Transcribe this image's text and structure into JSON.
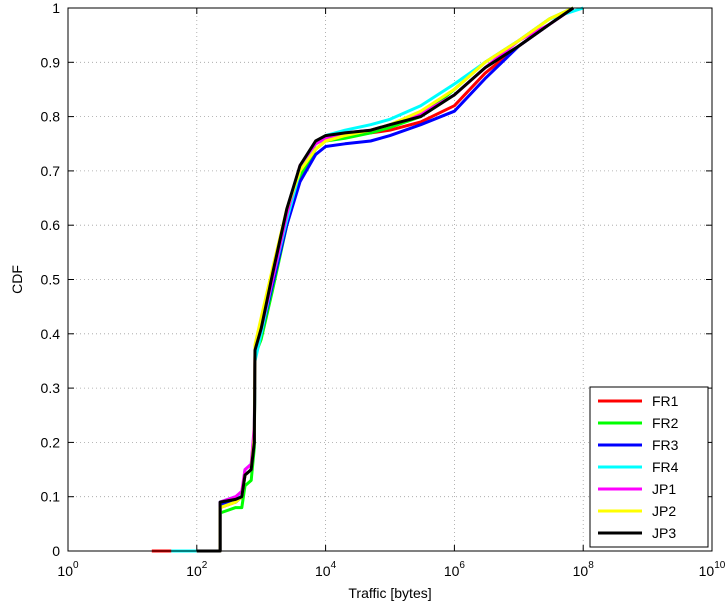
{
  "chart_data": {
    "type": "line",
    "title": "",
    "xlabel": "Traffic [bytes]",
    "ylabel": "CDF",
    "xscale": "log",
    "xlim": [
      1,
      10000000000
    ],
    "ylim": [
      0,
      1
    ],
    "grid": true,
    "legend_position": "bottom-right",
    "x_ticks": [
      {
        "base": "10",
        "exp": "0"
      },
      {
        "base": "10",
        "exp": "2"
      },
      {
        "base": "10",
        "exp": "4"
      },
      {
        "base": "10",
        "exp": "6"
      },
      {
        "base": "10",
        "exp": "8"
      },
      {
        "base": "10",
        "exp": "10"
      }
    ],
    "y_ticks": [
      "0",
      "0.1",
      "0.2",
      "0.3",
      "0.4",
      "0.5",
      "0.6",
      "0.7",
      "0.8",
      "0.9",
      "1"
    ],
    "series": [
      {
        "name": "FR1",
        "color": "#ff0000",
        "points": [
          [
            20,
            0
          ],
          [
            100,
            0
          ],
          [
            230,
            0
          ],
          [
            230,
            0.08
          ],
          [
            400,
            0.09
          ],
          [
            500,
            0.1
          ],
          [
            560,
            0.14
          ],
          [
            700,
            0.15
          ],
          [
            780,
            0.2
          ],
          [
            800,
            0.36
          ],
          [
            1000,
            0.4
          ],
          [
            1500,
            0.5
          ],
          [
            2500,
            0.62
          ],
          [
            4000,
            0.7
          ],
          [
            7000,
            0.75
          ],
          [
            10000,
            0.76
          ],
          [
            20000,
            0.765
          ],
          [
            50000,
            0.77
          ],
          [
            100000,
            0.775
          ],
          [
            300000,
            0.79
          ],
          [
            1000000,
            0.82
          ],
          [
            3000000,
            0.88
          ],
          [
            10000000,
            0.93
          ],
          [
            30000000,
            0.97
          ],
          [
            70000000,
            1
          ]
        ]
      },
      {
        "name": "FR2",
        "color": "#00ff00",
        "points": [
          [
            100,
            0
          ],
          [
            230,
            0
          ],
          [
            230,
            0.07
          ],
          [
            400,
            0.08
          ],
          [
            500,
            0.08
          ],
          [
            560,
            0.12
          ],
          [
            700,
            0.13
          ],
          [
            780,
            0.19
          ],
          [
            800,
            0.36
          ],
          [
            1000,
            0.39
          ],
          [
            1500,
            0.48
          ],
          [
            2500,
            0.6
          ],
          [
            4000,
            0.69
          ],
          [
            7000,
            0.74
          ],
          [
            10000,
            0.755
          ],
          [
            20000,
            0.76
          ],
          [
            50000,
            0.77
          ],
          [
            100000,
            0.78
          ],
          [
            300000,
            0.8
          ],
          [
            1000000,
            0.85
          ],
          [
            3000000,
            0.9
          ],
          [
            10000000,
            0.94
          ],
          [
            30000000,
            0.98
          ],
          [
            70000000,
            1
          ]
        ]
      },
      {
        "name": "FR3",
        "color": "#0000ff",
        "points": [
          [
            100,
            0
          ],
          [
            230,
            0
          ],
          [
            230,
            0.085
          ],
          [
            400,
            0.09
          ],
          [
            500,
            0.1
          ],
          [
            560,
            0.14
          ],
          [
            700,
            0.15
          ],
          [
            780,
            0.21
          ],
          [
            800,
            0.36
          ],
          [
            1000,
            0.4
          ],
          [
            1500,
            0.49
          ],
          [
            2500,
            0.6
          ],
          [
            4000,
            0.68
          ],
          [
            7000,
            0.73
          ],
          [
            10000,
            0.745
          ],
          [
            20000,
            0.75
          ],
          [
            50000,
            0.755
          ],
          [
            100000,
            0.765
          ],
          [
            300000,
            0.785
          ],
          [
            1000000,
            0.81
          ],
          [
            3000000,
            0.87
          ],
          [
            10000000,
            0.93
          ],
          [
            30000000,
            0.97
          ],
          [
            70000000,
            1
          ]
        ]
      },
      {
        "name": "FR4",
        "color": "#00ffff",
        "points": [
          [
            40,
            0
          ],
          [
            230,
            0
          ],
          [
            230,
            0.09
          ],
          [
            400,
            0.1
          ],
          [
            500,
            0.1
          ],
          [
            560,
            0.15
          ],
          [
            700,
            0.16
          ],
          [
            780,
            0.22
          ],
          [
            800,
            0.35
          ],
          [
            1000,
            0.4
          ],
          [
            1500,
            0.5
          ],
          [
            2500,
            0.61
          ],
          [
            4000,
            0.7
          ],
          [
            7000,
            0.75
          ],
          [
            10000,
            0.765
          ],
          [
            20000,
            0.775
          ],
          [
            50000,
            0.785
          ],
          [
            100000,
            0.795
          ],
          [
            300000,
            0.82
          ],
          [
            1000000,
            0.86
          ],
          [
            3000000,
            0.9
          ],
          [
            10000000,
            0.94
          ],
          [
            30000000,
            0.98
          ],
          [
            100000000,
            1
          ]
        ]
      },
      {
        "name": "JP1",
        "color": "#ff00ff",
        "points": [
          [
            100,
            0
          ],
          [
            230,
            0
          ],
          [
            230,
            0.09
          ],
          [
            400,
            0.1
          ],
          [
            500,
            0.11
          ],
          [
            560,
            0.15
          ],
          [
            700,
            0.16
          ],
          [
            780,
            0.23
          ],
          [
            800,
            0.37
          ],
          [
            1000,
            0.41
          ],
          [
            1500,
            0.5
          ],
          [
            2500,
            0.62
          ],
          [
            4000,
            0.71
          ],
          [
            7000,
            0.75
          ],
          [
            10000,
            0.76
          ],
          [
            20000,
            0.77
          ],
          [
            50000,
            0.775
          ],
          [
            100000,
            0.785
          ],
          [
            300000,
            0.805
          ],
          [
            1000000,
            0.84
          ],
          [
            3000000,
            0.89
          ],
          [
            10000000,
            0.94
          ],
          [
            30000000,
            0.97
          ],
          [
            70000000,
            1
          ]
        ]
      },
      {
        "name": "JP2",
        "color": "#ffff00",
        "points": [
          [
            100,
            0
          ],
          [
            230,
            0
          ],
          [
            230,
            0.08
          ],
          [
            400,
            0.09
          ],
          [
            500,
            0.1
          ],
          [
            560,
            0.14
          ],
          [
            700,
            0.15
          ],
          [
            780,
            0.21
          ],
          [
            800,
            0.38
          ],
          [
            1000,
            0.43
          ],
          [
            1500,
            0.52
          ],
          [
            2500,
            0.63
          ],
          [
            4000,
            0.7
          ],
          [
            7000,
            0.74
          ],
          [
            10000,
            0.755
          ],
          [
            20000,
            0.765
          ],
          [
            50000,
            0.775
          ],
          [
            100000,
            0.785
          ],
          [
            300000,
            0.81
          ],
          [
            1000000,
            0.85
          ],
          [
            3000000,
            0.9
          ],
          [
            10000000,
            0.94
          ],
          [
            30000000,
            0.98
          ],
          [
            70000000,
            1
          ]
        ]
      },
      {
        "name": "JP3",
        "color": "#000000",
        "points": [
          [
            100,
            0
          ],
          [
            230,
            0
          ],
          [
            230,
            0.09
          ],
          [
            400,
            0.095
          ],
          [
            500,
            0.1
          ],
          [
            560,
            0.14
          ],
          [
            700,
            0.15
          ],
          [
            780,
            0.2
          ],
          [
            800,
            0.37
          ],
          [
            1000,
            0.41
          ],
          [
            1500,
            0.51
          ],
          [
            2500,
            0.63
          ],
          [
            4000,
            0.71
          ],
          [
            7000,
            0.755
          ],
          [
            10000,
            0.765
          ],
          [
            20000,
            0.77
          ],
          [
            50000,
            0.775
          ],
          [
            100000,
            0.785
          ],
          [
            300000,
            0.8
          ],
          [
            1000000,
            0.84
          ],
          [
            3000000,
            0.89
          ],
          [
            10000000,
            0.93
          ],
          [
            30000000,
            0.97
          ],
          [
            70000000,
            1
          ]
        ]
      }
    ]
  }
}
